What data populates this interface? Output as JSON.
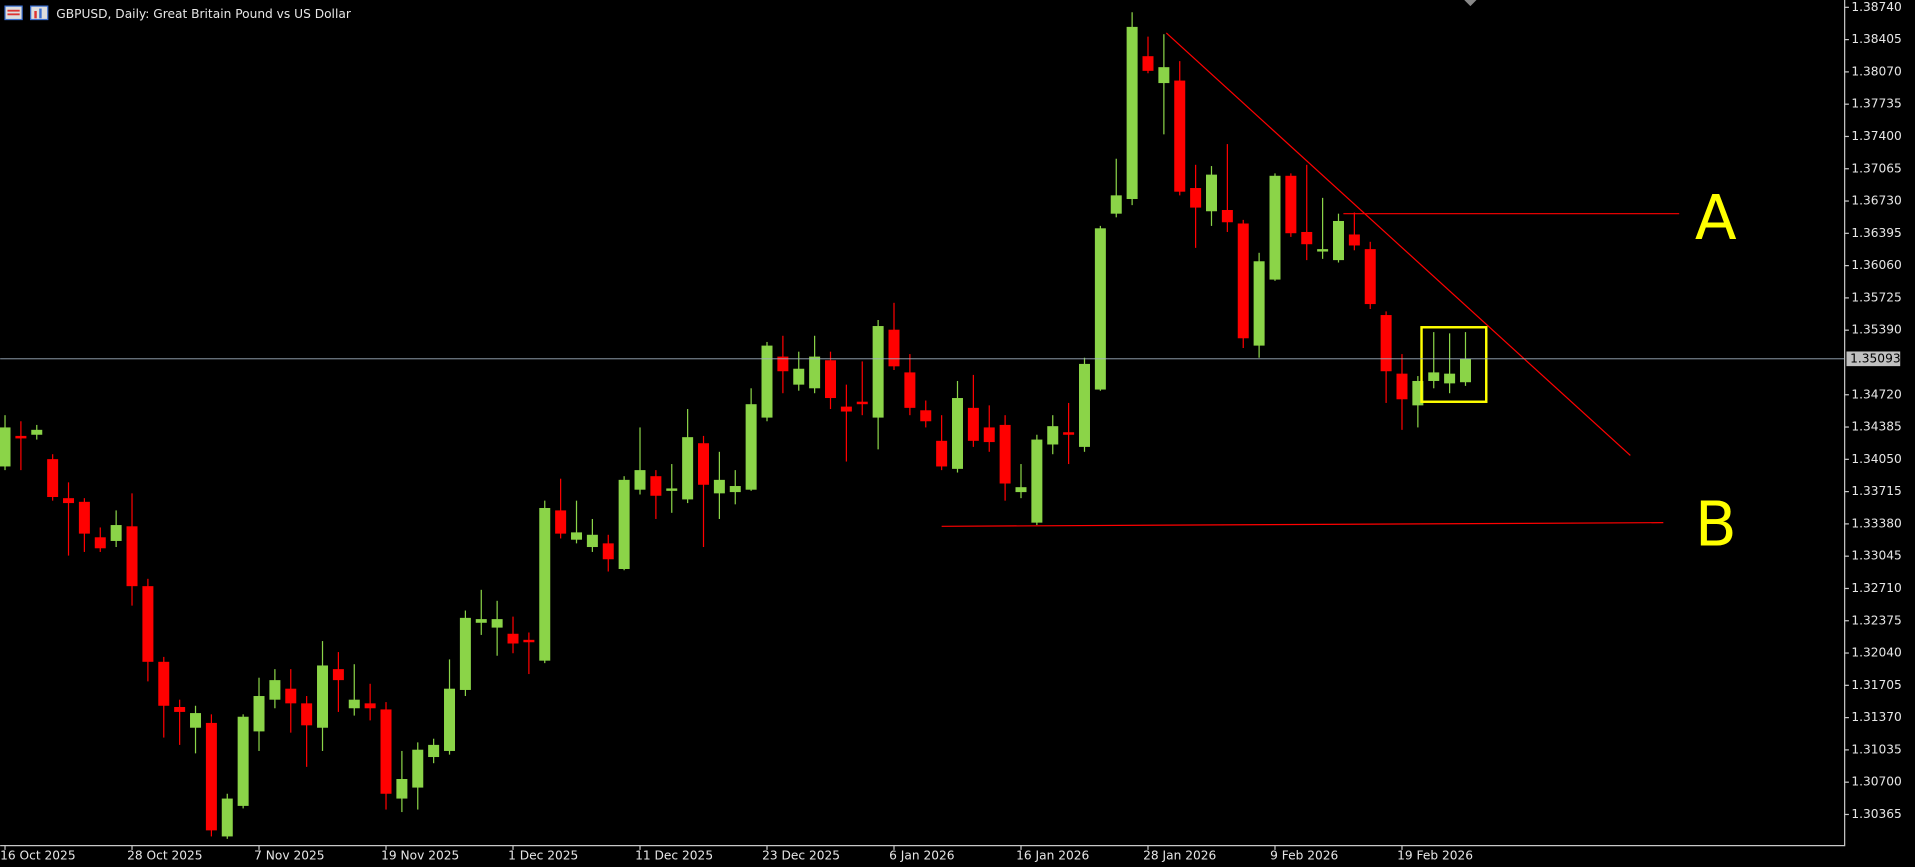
{
  "chart_data": {
    "type": "candlestick",
    "title": "GBPUSD, Daily:  Great Britain Pound vs US Dollar",
    "categories": [
      "16 Oct 2025",
      null,
      null,
      null,
      null,
      null,
      null,
      null,
      "28 Oct 2025",
      null,
      null,
      null,
      null,
      null,
      null,
      null,
      "7 Nov 2025",
      null,
      null,
      null,
      null,
      null,
      null,
      null,
      "19 Nov 2025",
      null,
      null,
      null,
      null,
      null,
      null,
      null,
      "1 Dec 2025",
      null,
      null,
      null,
      null,
      null,
      null,
      null,
      "11 Dec 2025",
      null,
      null,
      null,
      null,
      null,
      null,
      null,
      "23 Dec 2025",
      null,
      null,
      null,
      null,
      null,
      null,
      null,
      "6 Jan 2026",
      null,
      null,
      null,
      null,
      null,
      null,
      null,
      "16 Jan 2026",
      null,
      null,
      null,
      null,
      null,
      null,
      null,
      "28 Jan 2026",
      null,
      null,
      null,
      null,
      null,
      null,
      null,
      "9 Feb 2026",
      null,
      null,
      null,
      null,
      null,
      null,
      null,
      "19 Feb 2026",
      null,
      null,
      null,
      null
    ],
    "open": [
      1.33976,
      1.34293,
      1.34305,
      1.34052,
      1.33647,
      1.33609,
      1.33241,
      1.33203,
      1.33355,
      1.32734,
      1.31949,
      1.3148,
      1.31265,
      1.31315,
      1.30137,
      1.30454,
      1.31227,
      1.31556,
      1.3167,
      1.31518,
      1.31265,
      1.31873,
      1.31467,
      1.31518,
      1.31455,
      1.3053,
      1.30644,
      1.30961,
      1.31024,
      1.31657,
      1.32354,
      1.32304,
      1.3224,
      1.32177,
      1.31961,
      1.3352,
      1.33216,
      1.3314,
      1.33178,
      1.32912,
      1.33735,
      1.33875,
      1.33723,
      1.33634,
      1.34217,
      1.33697,
      1.3371,
      1.33735,
      1.34483,
      1.35116,
      1.34825,
      1.34787,
      1.35078,
      1.34597,
      1.34648,
      1.34483,
      1.35395,
      1.34952,
      1.34559,
      1.34242,
      1.33951,
      1.34584,
      1.34381,
      1.34407,
      1.3371,
      1.33393,
      1.34204,
      1.34331,
      1.34179,
      1.34774,
      1.36599,
      1.36751,
      1.38233,
      1.37954,
      1.3798,
      1.36865,
      1.36624,
      1.36637,
      1.36497,
      1.3523,
      1.35915,
      1.36992,
      1.36409,
      1.36206,
      1.36117,
      1.36383,
      1.36231,
      1.35547,
      1.34939,
      1.3461,
      1.34863,
      1.34838,
      1.3485
    ],
    "high": [
      1.34508,
      1.34445,
      1.34407,
      1.34103,
      1.33811,
      1.33647,
      1.33343,
      1.3352,
      1.33697,
      1.3281,
      1.32,
      1.31556,
      1.31493,
      1.31404,
      1.3058,
      1.31404,
      1.31784,
      1.31873,
      1.31873,
      1.31594,
      1.32164,
      1.3205,
      1.31924,
      1.31721,
      1.31531,
      1.31024,
      1.31113,
      1.31151,
      1.31974,
      1.32481,
      1.32696,
      1.32582,
      1.32418,
      1.32253,
      1.33621,
      1.33849,
      1.33621,
      1.33431,
      1.33267,
      1.33875,
      1.34381,
      1.33938,
      1.34001,
      1.34572,
      1.34293,
      1.34128,
      1.33938,
      1.34787,
      1.35268,
      1.35332,
      1.35167,
      1.35332,
      1.35167,
      1.34825,
      1.35066,
      1.35496,
      1.35674,
      1.35142,
      1.3466,
      1.34508,
      1.34863,
      1.34926,
      1.3461,
      1.34508,
      1.34001,
      1.34305,
      1.34508,
      1.34635,
      1.35104,
      1.36472,
      1.37169,
      1.38689,
      1.38436,
      1.38461,
      1.38182,
      1.37106,
      1.37093,
      1.37321,
      1.36535,
      1.36193,
      1.37017,
      1.37017,
      1.37106,
      1.36763,
      1.36599,
      1.36611,
      1.36307,
      1.35585,
      1.35142,
      1.34914,
      1.3537,
      1.35357,
      1.3537
    ],
    "low": [
      1.33938,
      1.33938,
      1.34255,
      1.33621,
      1.33051,
      1.33089,
      1.33089,
      1.3314,
      1.32532,
      1.31746,
      1.31163,
      1.31087,
      1.30999,
      1.30137,
      1.30112,
      1.30428,
      1.31024,
      1.31467,
      1.31214,
      1.30859,
      1.31024,
      1.31429,
      1.31391,
      1.31341,
      1.30416,
      1.3039,
      1.30416,
      1.30897,
      1.30986,
      1.31594,
      1.32228,
      1.32012,
      1.32038,
      1.31822,
      1.31936,
      1.33229,
      1.33178,
      1.33089,
      1.32886,
      1.32899,
      1.33685,
      1.33431,
      1.33495,
      1.33596,
      1.3314,
      1.33431,
      1.33583,
      1.33723,
      1.34445,
      1.34736,
      1.34762,
      1.34736,
      1.34572,
      1.34027,
      1.34508,
      1.34153,
      1.34977,
      1.34508,
      1.34381,
      1.33938,
      1.33913,
      1.34179,
      1.34128,
      1.33621,
      1.33647,
      1.33368,
      1.34103,
      1.34001,
      1.34128,
      1.34762,
      1.36561,
      1.36687,
      1.38056,
      1.37422,
      1.36789,
      1.36244,
      1.36472,
      1.36409,
      1.35205,
      1.35104,
      1.35902,
      1.36358,
      1.36117,
      1.3613,
      1.36092,
      1.36219,
      1.3561,
      1.34635,
      1.34356,
      1.34381,
      1.34787,
      1.34736,
      1.34812
    ],
    "close": [
      1.34381,
      1.34267,
      1.34356,
      1.33659,
      1.33596,
      1.33279,
      1.33127,
      1.33368,
      1.32734,
      1.31949,
      1.31493,
      1.31429,
      1.31417,
      1.302,
      1.3053,
      1.31379,
      1.31594,
      1.31759,
      1.31518,
      1.3129,
      1.31911,
      1.31759,
      1.31556,
      1.31467,
      1.3058,
      1.30733,
      1.31037,
      1.31087,
      1.3167,
      1.32405,
      1.32392,
      1.32392,
      1.32139,
      1.32152,
      1.33545,
      1.33279,
      1.33292,
      1.33267,
      1.33013,
      1.33837,
      1.33938,
      1.33672,
      1.33748,
      1.3428,
      1.33786,
      1.33837,
      1.33773,
      1.34622,
      1.3523,
      1.34964,
      1.3499,
      1.35116,
      1.34686,
      1.34546,
      1.34622,
      1.35433,
      1.35015,
      1.34584,
      1.34445,
      1.33976,
      1.34686,
      1.34242,
      1.34229,
      1.33799,
      1.33761,
      1.34255,
      1.34394,
      1.34305,
      1.3504,
      1.36447,
      1.36789,
      1.38537,
      1.38081,
      1.38119,
      1.36827,
      1.36662,
      1.37004,
      1.3651,
      1.35306,
      1.36105,
      1.36992,
      1.36396,
      1.36282,
      1.36231,
      1.36523,
      1.36269,
      1.35661,
      1.34964,
      1.34673,
      1.34863,
      1.34952,
      1.34939,
      1.35093
    ],
    "bull_color": "#8bd448",
    "bear_color": "#ff0000",
    "ylim": [
      1.30048,
      1.38816
    ],
    "yticks": [
      {
        "value": 1.3874,
        "label": "1.38740"
      },
      1.38405,
      {
        "value": 1.3807,
        "label": "1.38070"
      },
      1.37735,
      {
        "value": 1.374,
        "label": "1.37400"
      },
      1.37065,
      {
        "value": 1.3673,
        "label": "1.36730"
      },
      1.36395,
      {
        "value": 1.3606,
        "label": "1.36060"
      },
      1.35725,
      {
        "value": 1.3539,
        "label": "1.35390"
      },
      {
        "value": 1.3472,
        "label": "1.34720"
      },
      1.34385,
      {
        "value": 1.3405,
        "label": "1.34050"
      },
      1.33715,
      {
        "value": 1.3338,
        "label": "1.33380"
      },
      1.33045,
      {
        "value": 1.3271,
        "label": "1.32710"
      },
      1.32375,
      {
        "value": 1.3204,
        "label": "1.32040"
      },
      1.31705,
      {
        "value": 1.3137,
        "label": "1.31370"
      },
      1.31035,
      {
        "value": 1.307,
        "label": "1.30700"
      },
      1.30365
    ],
    "grid": false,
    "last_price": 1.35093,
    "annotations": [
      "A",
      "B"
    ]
  }
}
